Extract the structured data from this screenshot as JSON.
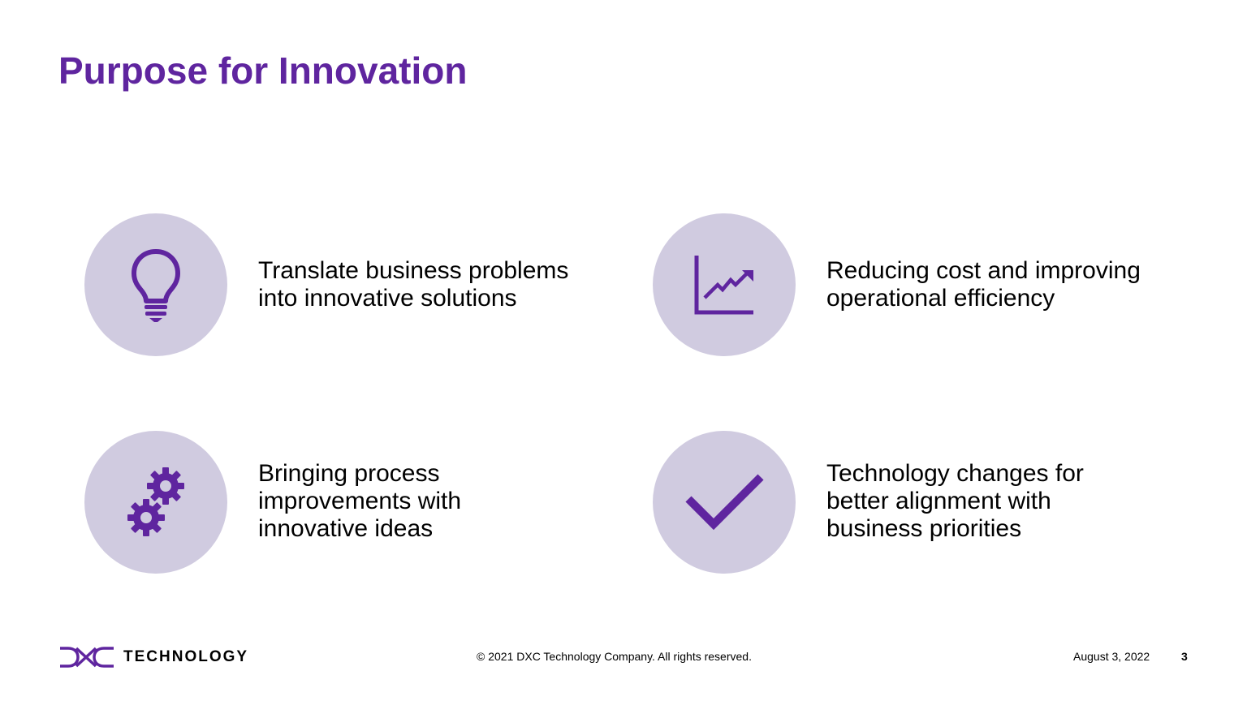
{
  "slide": {
    "title": "Purpose for Innovation"
  },
  "items": [
    {
      "icon": "lightbulb-icon",
      "text": "Translate business problems\ninto innovative solutions"
    },
    {
      "icon": "growth-chart-icon",
      "text": "Reducing cost and improving\noperational efficiency"
    },
    {
      "icon": "gears-icon",
      "text": "Bringing process\nimprovements with\ninnovative ideas"
    },
    {
      "icon": "checkmark-icon",
      "text": "Technology changes for\nbetter alignment with\nbusiness priorities"
    }
  ],
  "footer": {
    "logo_text": "DXC TECHNOLOGY",
    "copyright": "© 2021 DXC Technology Company. All rights reserved.",
    "date": "August 3, 2022",
    "page_number": "3"
  },
  "colors": {
    "accent": "#5f259f",
    "circle_fill": "#d0cbe0",
    "text": "#000000"
  }
}
